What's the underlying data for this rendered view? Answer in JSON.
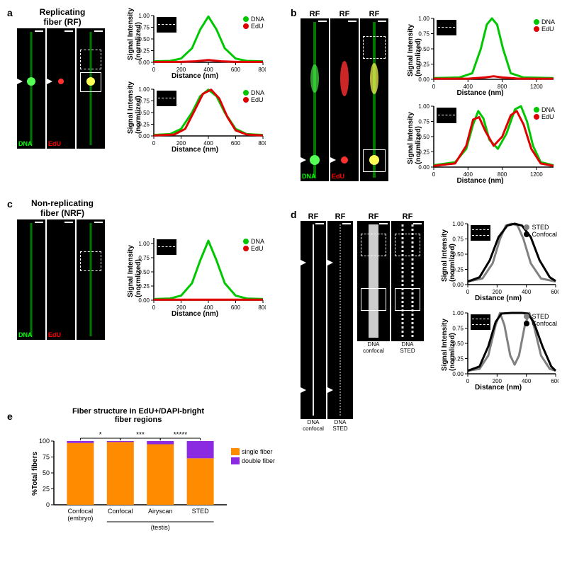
{
  "panel_a": {
    "label": "a",
    "title": "Replicating\nfiber (RF)",
    "micro_labels": {
      "dna": "DNA",
      "edu": "EdU"
    },
    "micro_w": 40,
    "micro_h": 170,
    "charts": [
      {
        "xlabel": "Distance (nm)",
        "ylabel": "Signal Intensity\n(normlized)",
        "xlim": [
          0,
          800
        ],
        "xticks": [
          0,
          200,
          400,
          600,
          800
        ],
        "ylim": [
          0,
          1.0
        ],
        "yticks": [
          0,
          0.25,
          0.5,
          0.75,
          1.0
        ],
        "series": [
          {
            "name": "DNA",
            "color": "#00c800",
            "points": [
              [
                0,
                0.02
              ],
              [
                120,
                0.03
              ],
              [
                200,
                0.08
              ],
              [
                280,
                0.3
              ],
              [
                340,
                0.7
              ],
              [
                400,
                0.98
              ],
              [
                460,
                0.7
              ],
              [
                520,
                0.3
              ],
              [
                600,
                0.08
              ],
              [
                680,
                0.03
              ],
              [
                800,
                0.02
              ]
            ]
          },
          {
            "name": "EdU",
            "color": "#e00000",
            "points": [
              [
                0,
                0.01
              ],
              [
                200,
                0.01
              ],
              [
                300,
                0.02
              ],
              [
                400,
                0.05
              ],
              [
                500,
                0.02
              ],
              [
                600,
                0.01
              ],
              [
                800,
                0.01
              ]
            ]
          }
        ]
      },
      {
        "xlabel": "Distance (nm)",
        "ylabel": "Signal Intensity\n(normlized)",
        "xlim": [
          0,
          800
        ],
        "xticks": [
          0,
          200,
          400,
          600,
          800
        ],
        "ylim": [
          0,
          1.0
        ],
        "yticks": [
          0,
          0.25,
          0.5,
          0.75,
          1.0
        ],
        "series": [
          {
            "name": "DNA",
            "color": "#00c800",
            "points": [
              [
                0,
                0.02
              ],
              [
                120,
                0.04
              ],
              [
                200,
                0.15
              ],
              [
                280,
                0.5
              ],
              [
                340,
                0.85
              ],
              [
                400,
                0.99
              ],
              [
                460,
                0.85
              ],
              [
                520,
                0.5
              ],
              [
                600,
                0.15
              ],
              [
                680,
                0.04
              ],
              [
                800,
                0.02
              ]
            ]
          },
          {
            "name": "EdU",
            "color": "#e00000",
            "points": [
              [
                0,
                0.01
              ],
              [
                150,
                0.03
              ],
              [
                230,
                0.15
              ],
              [
                300,
                0.55
              ],
              [
                360,
                0.9
              ],
              [
                420,
                0.99
              ],
              [
                480,
                0.8
              ],
              [
                540,
                0.4
              ],
              [
                600,
                0.12
              ],
              [
                680,
                0.03
              ],
              [
                800,
                0.01
              ]
            ]
          }
        ]
      }
    ]
  },
  "panel_b": {
    "label": "b",
    "col_labels": [
      "RF",
      "RF",
      "RF"
    ],
    "micro_labels": {
      "dna": "DNA",
      "edu": "EdU"
    },
    "micro_w": 40,
    "micro_h": 230,
    "charts": [
      {
        "xlabel": "Distance (nm)",
        "ylabel": "Signal Intensity\n(normlized)",
        "xlim": [
          0,
          1400
        ],
        "xticks": [
          0,
          400,
          800,
          1200
        ],
        "ylim": [
          0,
          1.0
        ],
        "yticks": [
          0,
          0.25,
          0.5,
          0.75,
          1.0
        ],
        "series": [
          {
            "name": "DNA",
            "color": "#00c800",
            "points": [
              [
                0,
                0.02
              ],
              [
                300,
                0.03
              ],
              [
                450,
                0.1
              ],
              [
                550,
                0.5
              ],
              [
                620,
                0.9
              ],
              [
                680,
                1.0
              ],
              [
                740,
                0.9
              ],
              [
                810,
                0.5
              ],
              [
                900,
                0.1
              ],
              [
                1050,
                0.03
              ],
              [
                1400,
                0.02
              ]
            ]
          },
          {
            "name": "EdU",
            "color": "#e00000",
            "points": [
              [
                0,
                0.01
              ],
              [
                400,
                0.01
              ],
              [
                600,
                0.03
              ],
              [
                700,
                0.05
              ],
              [
                800,
                0.03
              ],
              [
                1000,
                0.01
              ],
              [
                1400,
                0.01
              ]
            ]
          }
        ]
      },
      {
        "xlabel": "Distance (nm)",
        "ylabel": "Signal Intensity\n(normlized)",
        "xlim": [
          0,
          1400
        ],
        "xticks": [
          0,
          400,
          800,
          1200
        ],
        "ylim": [
          0,
          1.0
        ],
        "yticks": [
          0,
          0.25,
          0.5,
          0.75,
          1.0
        ],
        "series": [
          {
            "name": "DNA",
            "color": "#00c800",
            "points": [
              [
                0,
                0.03
              ],
              [
                250,
                0.08
              ],
              [
                380,
                0.3
              ],
              [
                460,
                0.7
              ],
              [
                520,
                0.92
              ],
              [
                580,
                0.8
              ],
              [
                650,
                0.45
              ],
              [
                750,
                0.3
              ],
              [
                850,
                0.55
              ],
              [
                950,
                0.95
              ],
              [
                1020,
                1.0
              ],
              [
                1090,
                0.75
              ],
              [
                1160,
                0.35
              ],
              [
                1250,
                0.08
              ],
              [
                1400,
                0.03
              ]
            ]
          },
          {
            "name": "EdU",
            "color": "#e00000",
            "points": [
              [
                0,
                0.02
              ],
              [
                250,
                0.06
              ],
              [
                380,
                0.35
              ],
              [
                460,
                0.78
              ],
              [
                530,
                0.82
              ],
              [
                600,
                0.6
              ],
              [
                700,
                0.35
              ],
              [
                800,
                0.5
              ],
              [
                900,
                0.85
              ],
              [
                970,
                0.92
              ],
              [
                1050,
                0.7
              ],
              [
                1140,
                0.3
              ],
              [
                1250,
                0.06
              ],
              [
                1400,
                0.02
              ]
            ]
          }
        ]
      }
    ]
  },
  "panel_c": {
    "label": "c",
    "title": "Non-replicating\nfiber (NRF)",
    "micro_labels": {
      "dna": "DNA",
      "edu": "EdU"
    },
    "micro_w": 40,
    "micro_h": 170,
    "chart": {
      "xlabel": "Distance (nm)",
      "ylabel": "Signal Intensity\n(normlized)",
      "xlim": [
        0,
        800
      ],
      "xticks": [
        0,
        200,
        400,
        600,
        800
      ],
      "ylim": [
        0,
        1.1
      ],
      "yticks": [
        0,
        0.25,
        0.5,
        0.75,
        1.0
      ],
      "series": [
        {
          "name": "DNA",
          "color": "#00c800",
          "points": [
            [
              0,
              0.02
            ],
            [
              120,
              0.03
            ],
            [
              200,
              0.08
            ],
            [
              280,
              0.3
            ],
            [
              340,
              0.7
            ],
            [
              400,
              1.05
            ],
            [
              460,
              0.7
            ],
            [
              520,
              0.3
            ],
            [
              600,
              0.08
            ],
            [
              680,
              0.03
            ],
            [
              800,
              0.02
            ]
          ]
        },
        {
          "name": "EdU",
          "color": "#e00000",
          "points": [
            [
              0,
              0.01
            ],
            [
              800,
              0.01
            ]
          ]
        }
      ]
    }
  },
  "panel_d": {
    "label": "d",
    "col_labels": [
      "RF",
      "RF",
      "RF",
      "RF"
    ],
    "bottom_labels": [
      "DNA\nconfocal",
      "DNA\nSTED",
      "DNA\nconfocal",
      "DNA\nSTED"
    ],
    "micro_w_tall": 36,
    "micro_h_tall": 280,
    "micro_w_short": 46,
    "micro_h_short": 170,
    "charts": [
      {
        "xlabel": "Distance (nm)",
        "ylabel": "Signal Intensity\n(normlized)",
        "xlim": [
          0,
          600
        ],
        "xticks": [
          0,
          200,
          400,
          600
        ],
        "ylim": [
          0,
          1.0
        ],
        "yticks": [
          0,
          0.25,
          0.5,
          0.75,
          1.0
        ],
        "series": [
          {
            "name": "STED",
            "color": "#808080",
            "points": [
              [
                0,
                0.05
              ],
              [
                100,
                0.1
              ],
              [
                170,
                0.35
              ],
              [
                220,
                0.75
              ],
              [
                260,
                0.97
              ],
              [
                300,
                1.0
              ],
              [
                340,
                0.97
              ],
              [
                380,
                0.75
              ],
              [
                430,
                0.35
              ],
              [
                500,
                0.1
              ],
              [
                600,
                0.05
              ]
            ]
          },
          {
            "name": "Confocal",
            "color": "#000000",
            "points": [
              [
                0,
                0.05
              ],
              [
                80,
                0.12
              ],
              [
                150,
                0.4
              ],
              [
                210,
                0.78
              ],
              [
                270,
                0.97
              ],
              [
                320,
                1.0
              ],
              [
                370,
                0.97
              ],
              [
                430,
                0.78
              ],
              [
                490,
                0.4
              ],
              [
                560,
                0.12
              ],
              [
                600,
                0.06
              ]
            ]
          }
        ]
      },
      {
        "xlabel": "Distance (nm)",
        "ylabel": "Signal Intensity\n(normlized)",
        "xlim": [
          0,
          600
        ],
        "xticks": [
          0,
          200,
          400,
          600
        ],
        "ylim": [
          0,
          1.0
        ],
        "yticks": [
          0,
          0.25,
          0.5,
          0.75,
          1.0
        ],
        "series": [
          {
            "name": "STED",
            "color": "#808080",
            "points": [
              [
                0,
                0.05
              ],
              [
                80,
                0.08
              ],
              [
                140,
                0.3
              ],
              [
                190,
                0.8
              ],
              [
                220,
                1.0
              ],
              [
                250,
                0.8
              ],
              [
                290,
                0.3
              ],
              [
                320,
                0.15
              ],
              [
                350,
                0.3
              ],
              [
                390,
                0.8
              ],
              [
                420,
                1.0
              ],
              [
                450,
                0.8
              ],
              [
                500,
                0.3
              ],
              [
                560,
                0.08
              ],
              [
                600,
                0.05
              ]
            ]
          },
          {
            "name": "Confocal",
            "color": "#000000",
            "points": [
              [
                0,
                0.05
              ],
              [
                80,
                0.12
              ],
              [
                140,
                0.45
              ],
              [
                190,
                0.85
              ],
              [
                230,
                0.99
              ],
              [
                300,
                1.0
              ],
              [
                370,
                1.0
              ],
              [
                410,
                0.99
              ],
              [
                450,
                0.85
              ],
              [
                510,
                0.45
              ],
              [
                570,
                0.12
              ],
              [
                600,
                0.05
              ]
            ]
          }
        ]
      }
    ]
  },
  "panel_e": {
    "label": "e",
    "title": "Fiber structure in EdU+/DAPI-bright\nfiber regions",
    "ylabel": "%Total fibers",
    "yticks": [
      0,
      25,
      50,
      75,
      100
    ],
    "categories": [
      "Confocal\n(embryo)",
      "Confocal",
      "Airyscan",
      "STED"
    ],
    "group_label": "(testis)",
    "group_span": [
      1,
      3
    ],
    "legend": [
      {
        "name": "single fiber",
        "color": "#ff8c00"
      },
      {
        "name": "double fiber",
        "color": "#8a2be2"
      }
    ],
    "data_single": [
      97,
      98.5,
      95,
      73
    ],
    "data_double": [
      3,
      1.5,
      5,
      27
    ],
    "bar_color_single": "#ff8c00",
    "bar_color_double": "#8a2be2",
    "sig": [
      {
        "from": 0,
        "to": 1,
        "label": "*"
      },
      {
        "from": 1,
        "to": 2,
        "label": "***"
      },
      {
        "from": 2,
        "to": 3,
        "label": "*****"
      }
    ]
  },
  "colors": {
    "background": "#ffffff",
    "axis": "#000000",
    "dna": "#00c800",
    "edu": "#e00000",
    "sted": "#808080",
    "confocal": "#000000"
  },
  "line_width": 3
}
